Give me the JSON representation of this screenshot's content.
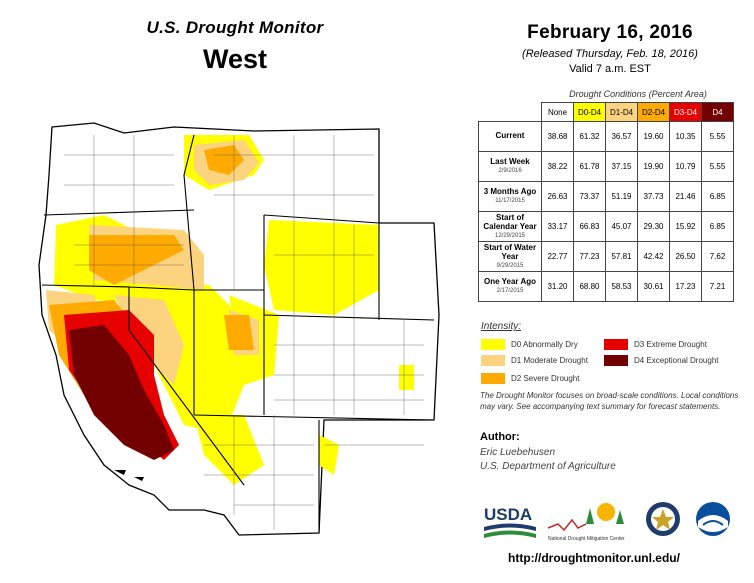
{
  "header": {
    "monitor_title": "U.S. Drought Monitor",
    "region": "West",
    "date": "February 16, 2016",
    "released": "(Released Thursday, Feb. 18, 2016)",
    "valid": "Valid  7 a.m. EST"
  },
  "table": {
    "caption": "Drought Conditions (Percent Area)",
    "columns": [
      "None",
      "D0-D4",
      "D1-D4",
      "D2-D4",
      "D3-D4",
      "D4"
    ],
    "rows": [
      {
        "label": "Current",
        "date": "",
        "values": [
          "38.68",
          "61.32",
          "36.57",
          "19.60",
          "10.35",
          "5.55"
        ]
      },
      {
        "label": "Last Week",
        "date": "2/9/2016",
        "values": [
          "38.22",
          "61.78",
          "37.15",
          "19.90",
          "10.79",
          "5.55"
        ]
      },
      {
        "label": "3 Months Ago",
        "date": "11/17/2015",
        "values": [
          "26.63",
          "73.37",
          "51.19",
          "37.73",
          "21.46",
          "6.85"
        ]
      },
      {
        "label": "Start of Calendar Year",
        "date": "12/29/2015",
        "values": [
          "33.17",
          "66.83",
          "45.07",
          "29.30",
          "15.92",
          "6.85"
        ]
      },
      {
        "label": "Start of Water Year",
        "date": "9/29/2015",
        "values": [
          "22.77",
          "77.23",
          "57.81",
          "42.42",
          "26.50",
          "7.62"
        ]
      },
      {
        "label": "One Year Ago",
        "date": "2/17/2015",
        "values": [
          "31.20",
          "68.80",
          "58.53",
          "30.61",
          "17.23",
          "7.21"
        ]
      }
    ]
  },
  "legend": {
    "title": "Intensity:",
    "items": [
      {
        "label": "D0 Abnormally Dry",
        "color": "#ffff00"
      },
      {
        "label": "D1 Moderate Drought",
        "color": "#fcd37f"
      },
      {
        "label": "D2 Severe Drought",
        "color": "#ffaa00"
      },
      {
        "label": "D3 Extreme Drought",
        "color": "#e60000"
      },
      {
        "label": "D4 Exceptional Drought",
        "color": "#730000"
      }
    ]
  },
  "note": "The Drought Monitor focuses on broad-scale conditions. Local conditions may vary. See accompanying text summary for forecast statements.",
  "author": {
    "heading": "Author:",
    "name": "Eric Luebehusen",
    "org": "U.S. Department of Agriculture"
  },
  "logos": {
    "usda": "USDA",
    "ndmc": "National Drought Mitigation Center"
  },
  "url": "http://droughtmonitor.unl.edu/"
}
